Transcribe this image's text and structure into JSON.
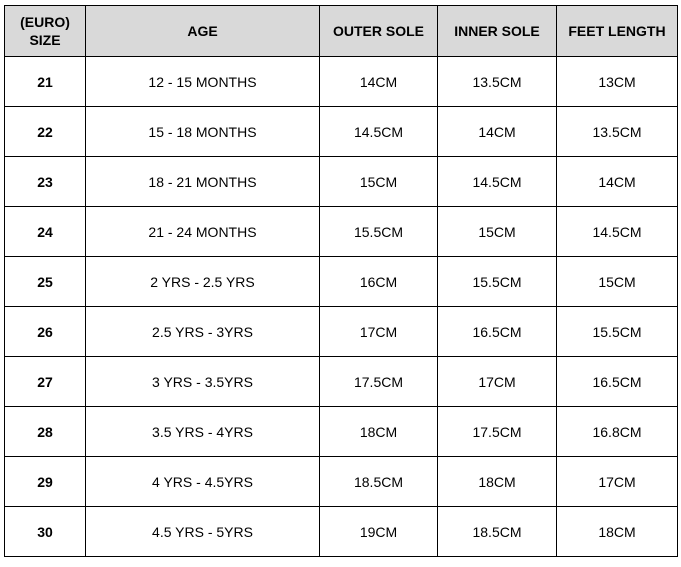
{
  "table": {
    "headers": {
      "size_line1": "(EURO)",
      "size_line2": "SIZE",
      "age": "AGE",
      "outer_sole": "OUTER SOLE",
      "inner_sole": "INNER SOLE",
      "feet_length": "FEET LENGTH"
    },
    "rows": [
      {
        "size": "21",
        "age": "12 - 15 MONTHS",
        "outer_sole": "14CM",
        "inner_sole": "13.5CM",
        "feet_length": "13CM"
      },
      {
        "size": "22",
        "age": "15 - 18 MONTHS",
        "outer_sole": "14.5CM",
        "inner_sole": "14CM",
        "feet_length": "13.5CM"
      },
      {
        "size": "23",
        "age": "18 - 21 MONTHS",
        "outer_sole": "15CM",
        "inner_sole": "14.5CM",
        "feet_length": "14CM"
      },
      {
        "size": "24",
        "age": "21 - 24 MONTHS",
        "outer_sole": "15.5CM",
        "inner_sole": "15CM",
        "feet_length": "14.5CM"
      },
      {
        "size": "25",
        "age": "2 YRS - 2.5 YRS",
        "outer_sole": "16CM",
        "inner_sole": "15.5CM",
        "feet_length": "15CM"
      },
      {
        "size": "26",
        "age": "2.5 YRS - 3YRS",
        "outer_sole": "17CM",
        "inner_sole": "16.5CM",
        "feet_length": "15.5CM"
      },
      {
        "size": "27",
        "age": "3 YRS - 3.5YRS",
        "outer_sole": "17.5CM",
        "inner_sole": "17CM",
        "feet_length": "16.5CM"
      },
      {
        "size": "28",
        "age": "3.5 YRS - 4YRS",
        "outer_sole": "18CM",
        "inner_sole": "17.5CM",
        "feet_length": "16.8CM"
      },
      {
        "size": "29",
        "age": "4 YRS - 4.5YRS",
        "outer_sole": "18.5CM",
        "inner_sole": "18CM",
        "feet_length": "17CM"
      },
      {
        "size": "30",
        "age": "4.5 YRS - 5YRS",
        "outer_sole": "19CM",
        "inner_sole": "18.5CM",
        "feet_length": "18CM"
      }
    ]
  },
  "colors": {
    "header_background": "#d9d9d9",
    "border": "#000000",
    "text": "#000000"
  }
}
